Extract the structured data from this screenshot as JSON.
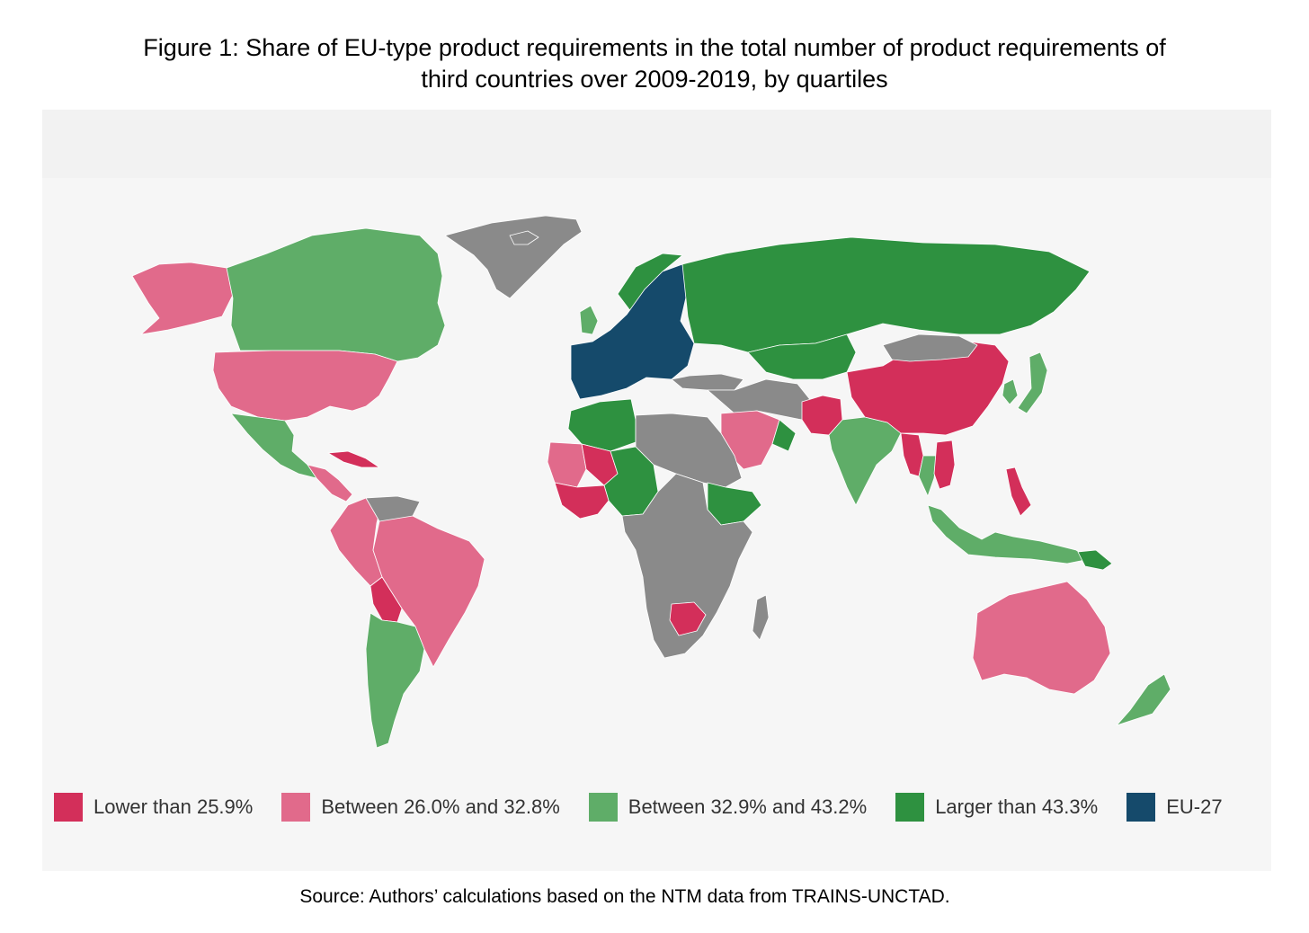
{
  "title": {
    "line1": "Figure 1: Share of EU-type product requirements in the total number of product requirements of",
    "line2": "third countries over 2009-2019, by quartiles"
  },
  "colors": {
    "lower": "#d32f5a",
    "between_low": "#e16a8b",
    "between_high": "#5fad68",
    "larger": "#2e9140",
    "eu": "#154a6b",
    "no_data": "#8a8a8a",
    "background": "#f6f6f6"
  },
  "legend": [
    {
      "label": "Lower than 25.9%",
      "color": "#d32f5a"
    },
    {
      "label": "Between 26.0% and 32.8%",
      "color": "#e16a8b"
    },
    {
      "label": "Between 32.9% and 43.2%",
      "color": "#5fad68"
    },
    {
      "label": "Larger than 43.3%",
      "color": "#2e9140"
    },
    {
      "label": "EU-27",
      "color": "#154a6b"
    }
  ],
  "map_regions": [
    {
      "region": "Greenland",
      "category": "no_data"
    },
    {
      "region": "Alaska",
      "category": "between_low"
    },
    {
      "region": "Canada",
      "category": "between_high"
    },
    {
      "region": "United States",
      "category": "between_low"
    },
    {
      "region": "Mexico",
      "category": "between_high"
    },
    {
      "region": "Central America",
      "category": "between_low"
    },
    {
      "region": "Cuba",
      "category": "lower"
    },
    {
      "region": "Venezuela / Guyanas",
      "category": "no_data"
    },
    {
      "region": "Colombia / Peru / Ecuador",
      "category": "between_low"
    },
    {
      "region": "Brazil",
      "category": "between_low"
    },
    {
      "region": "Bolivia",
      "category": "lower"
    },
    {
      "region": "Argentina / Chile",
      "category": "between_high"
    },
    {
      "region": "Iceland",
      "category": "no_data"
    },
    {
      "region": "EU-27",
      "category": "eu"
    },
    {
      "region": "United Kingdom",
      "category": "between_high"
    },
    {
      "region": "Norway",
      "category": "larger"
    },
    {
      "region": "Russia",
      "category": "larger"
    },
    {
      "region": "Kazakhstan / Central Asia",
      "category": "larger"
    },
    {
      "region": "Turkey",
      "category": "no_data"
    },
    {
      "region": "Middle East",
      "category": "no_data"
    },
    {
      "region": "Saudi Arabia",
      "category": "between_low"
    },
    {
      "region": "Oman",
      "category": "larger"
    },
    {
      "region": "Afghanistan / Pakistan",
      "category": "lower"
    },
    {
      "region": "India",
      "category": "between_high"
    },
    {
      "region": "China",
      "category": "lower"
    },
    {
      "region": "Mongolia",
      "category": "no_data"
    },
    {
      "region": "Japan",
      "category": "between_high"
    },
    {
      "region": "Korea",
      "category": "between_high"
    },
    {
      "region": "Myanmar",
      "category": "lower"
    },
    {
      "region": "Thailand",
      "category": "between_high"
    },
    {
      "region": "Vietnam / Cambodia",
      "category": "lower"
    },
    {
      "region": "Philippines",
      "category": "lower"
    },
    {
      "region": "Indonesia / Malaysia",
      "category": "between_high"
    },
    {
      "region": "Papua New Guinea",
      "category": "larger"
    },
    {
      "region": "Australia",
      "category": "between_low"
    },
    {
      "region": "New Zealand",
      "category": "between_high"
    },
    {
      "region": "North Africa",
      "category": "larger"
    },
    {
      "region": "Egypt / Libya / Sudan",
      "category": "no_data"
    },
    {
      "region": "Mauritania / Senegal",
      "category": "between_low"
    },
    {
      "region": "Mali",
      "category": "lower"
    },
    {
      "region": "Niger / Nigeria / Cameroon",
      "category": "larger"
    },
    {
      "region": "West African coast",
      "category": "lower"
    },
    {
      "region": "Ethiopia",
      "category": "larger"
    },
    {
      "region": "Central & Southern Africa",
      "category": "no_data"
    },
    {
      "region": "Zimbabwe / Botswana",
      "category": "lower"
    },
    {
      "region": "Madagascar",
      "category": "no_data"
    }
  ],
  "source": "Source: Authors’ calculations based on the NTM data from TRAINS-UNCTAD."
}
